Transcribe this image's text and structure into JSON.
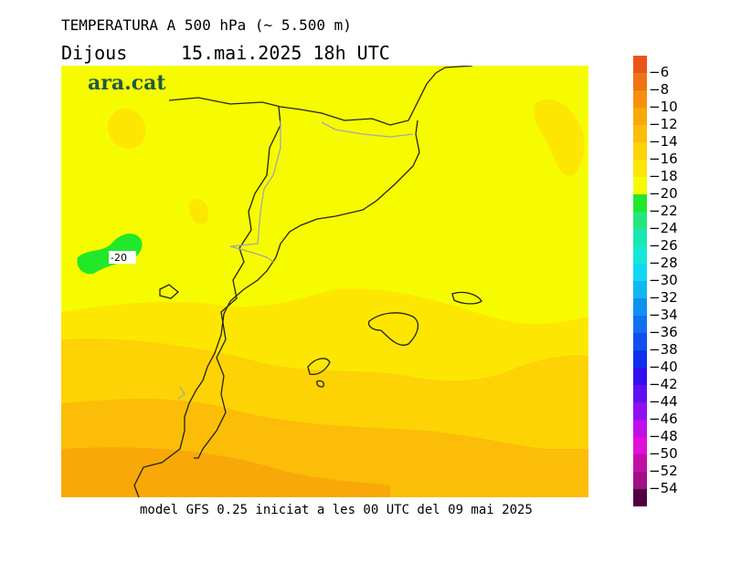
{
  "header": {
    "title": "TEMPERATURA A 500 hPa (~ 5.500 m)",
    "day": "Dijous",
    "date": "15.mai.2025 18h UTC"
  },
  "brand": {
    "logo_text": "ara.cat"
  },
  "map": {
    "contour_label": "-20"
  },
  "footer": {
    "text": "model GFS 0.25 iniciat a les 00 UTC del 09 mai 2025"
  },
  "legend": {
    "labels": [
      "-6",
      "-8",
      "-10",
      "-12",
      "-14",
      "-16",
      "-18",
      "-20",
      "-22",
      "-24",
      "-26",
      "-28",
      "-30",
      "-32",
      "-34",
      "-36",
      "-38",
      "-40",
      "-42",
      "-44",
      "-46",
      "-48",
      "-50",
      "-52",
      "-54"
    ],
    "colors": [
      "#e8561a",
      "#f07414",
      "#f5900a",
      "#f8a808",
      "#fbbd08",
      "#fdd305",
      "#fde702",
      "#f7fb00",
      "#22e82a",
      "#20e87e",
      "#1ae8b0",
      "#15e8d8",
      "#10d8f0",
      "#10b8f0",
      "#1090f0",
      "#1070f0",
      "#1050f0",
      "#1030f0",
      "#3010f0",
      "#6010f0",
      "#9010f0",
      "#c010e8",
      "#e010d8",
      "#c010a8",
      "#a01088",
      "#500040"
    ]
  }
}
